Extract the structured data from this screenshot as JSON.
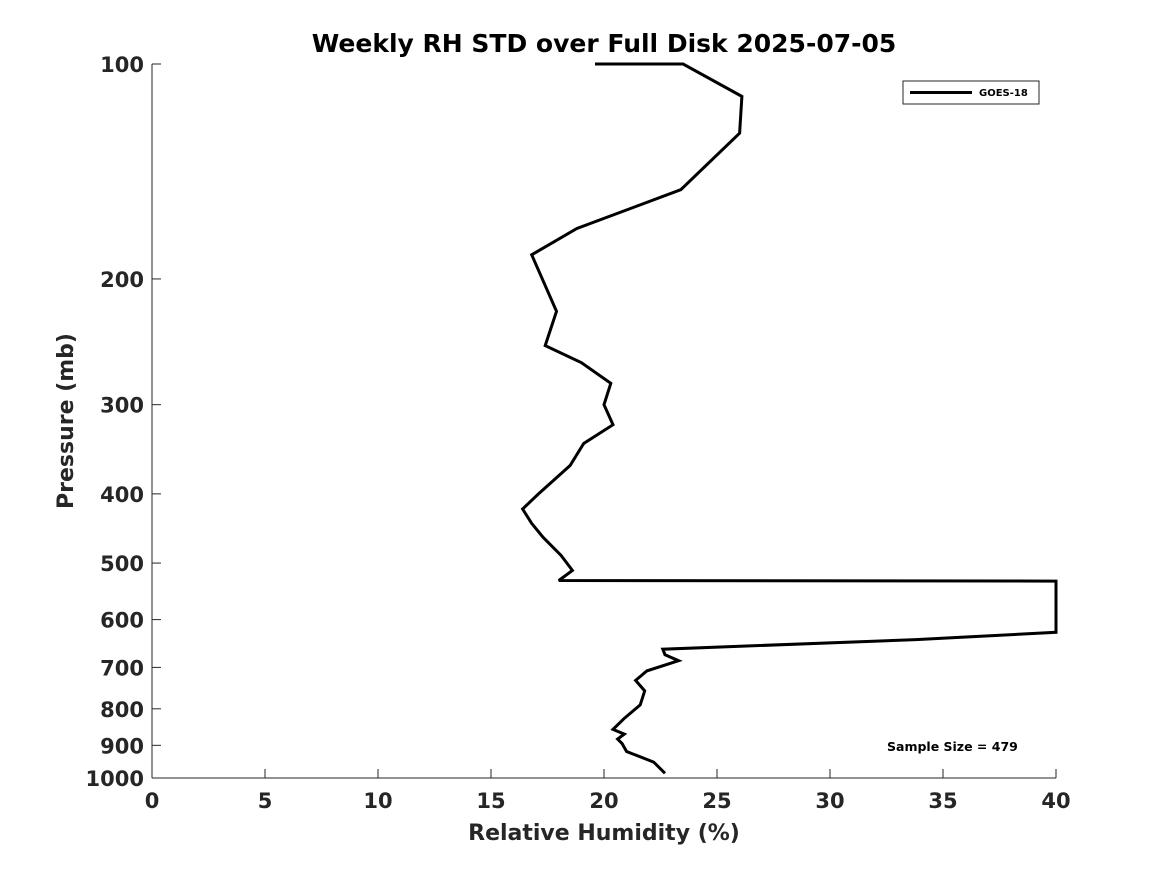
{
  "chart_data": {
    "type": "line",
    "title": "Weekly RH STD over Full Disk 2025-07-05",
    "xlabel": "Relative Humidity (%)",
    "ylabel": "Pressure (mb)",
    "xlim": [
      0,
      40
    ],
    "ylim": [
      100,
      1000
    ],
    "y_scale": "log",
    "y_reversed": true,
    "xticks": [
      0,
      5,
      10,
      15,
      20,
      25,
      30,
      35,
      40
    ],
    "yticks": [
      100,
      200,
      300,
      400,
      500,
      600,
      700,
      800,
      900,
      1000
    ],
    "grid": false,
    "legend_position": "top-right",
    "annotation": "Sample Size = 479",
    "series": [
      {
        "name": "GOES-18",
        "color": "#000000",
        "x": [
          22.7,
          22.2,
          21.0,
          20.8,
          20.6,
          20.9,
          20.4,
          20.9,
          21.6,
          21.8,
          21.4,
          21.9,
          23.3,
          22.7,
          22.6,
          33.8,
          40.0,
          40.0,
          18.0,
          18.6,
          18.1,
          17.3,
          16.8,
          16.4,
          17.1,
          18.5,
          19.1,
          20.4,
          20.0,
          20.3,
          19.0,
          17.4,
          17.9,
          16.8,
          18.8,
          23.4,
          26.0,
          26.1,
          23.5,
          20.9,
          19.6
        ],
        "y": [
          985,
          950,
          918,
          895,
          882,
          868,
          855,
          825,
          790,
          755,
          730,
          708,
          685,
          672,
          660,
          640,
          625,
          530,
          529,
          512,
          488,
          460,
          440,
          420,
          400,
          365,
          340,
          320,
          300,
          280,
          262,
          248,
          222,
          185,
          170,
          150,
          125,
          111,
          100,
          100,
          100
        ]
      }
    ]
  }
}
